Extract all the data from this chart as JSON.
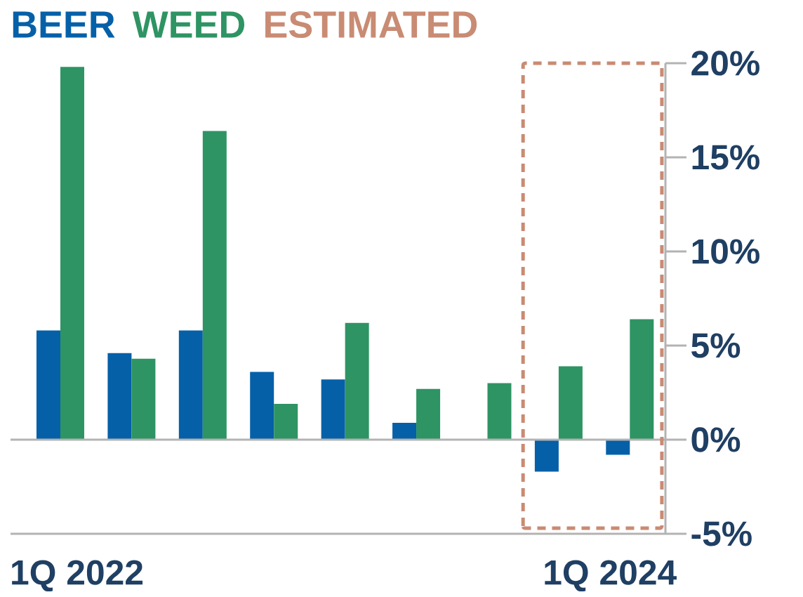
{
  "chart_data": {
    "type": "bar",
    "categories": [
      "1Q 2022",
      null,
      null,
      null,
      null,
      null,
      null,
      null,
      "1Q 2024"
    ],
    "series": [
      {
        "name": "BEER",
        "color": "#0560a8",
        "values": [
          5.8,
          4.6,
          5.8,
          3.6,
          3.2,
          0.9,
          null,
          -1.7,
          -0.8
        ]
      },
      {
        "name": "WEED",
        "color": "#2e9463",
        "values": [
          19.8,
          4.3,
          16.4,
          1.9,
          6.2,
          2.7,
          3.0,
          3.9,
          6.4
        ]
      }
    ],
    "ylim": [
      -5,
      20
    ],
    "yticks": [
      {
        "value": -5,
        "label": "-5%"
      },
      {
        "value": 0,
        "label": "0%"
      },
      {
        "value": 5,
        "label": "5%"
      },
      {
        "value": 10,
        "label": "10%"
      },
      {
        "value": 15,
        "label": "15%"
      },
      {
        "value": 20,
        "label": "20%"
      }
    ],
    "ref_lines": [
      {
        "axis": "y",
        "value": 0,
        "color": "#b3b3b3"
      }
    ],
    "annotations": [
      "ESTIMATED"
    ],
    "legend": "top left",
    "grid": false
  }
}
